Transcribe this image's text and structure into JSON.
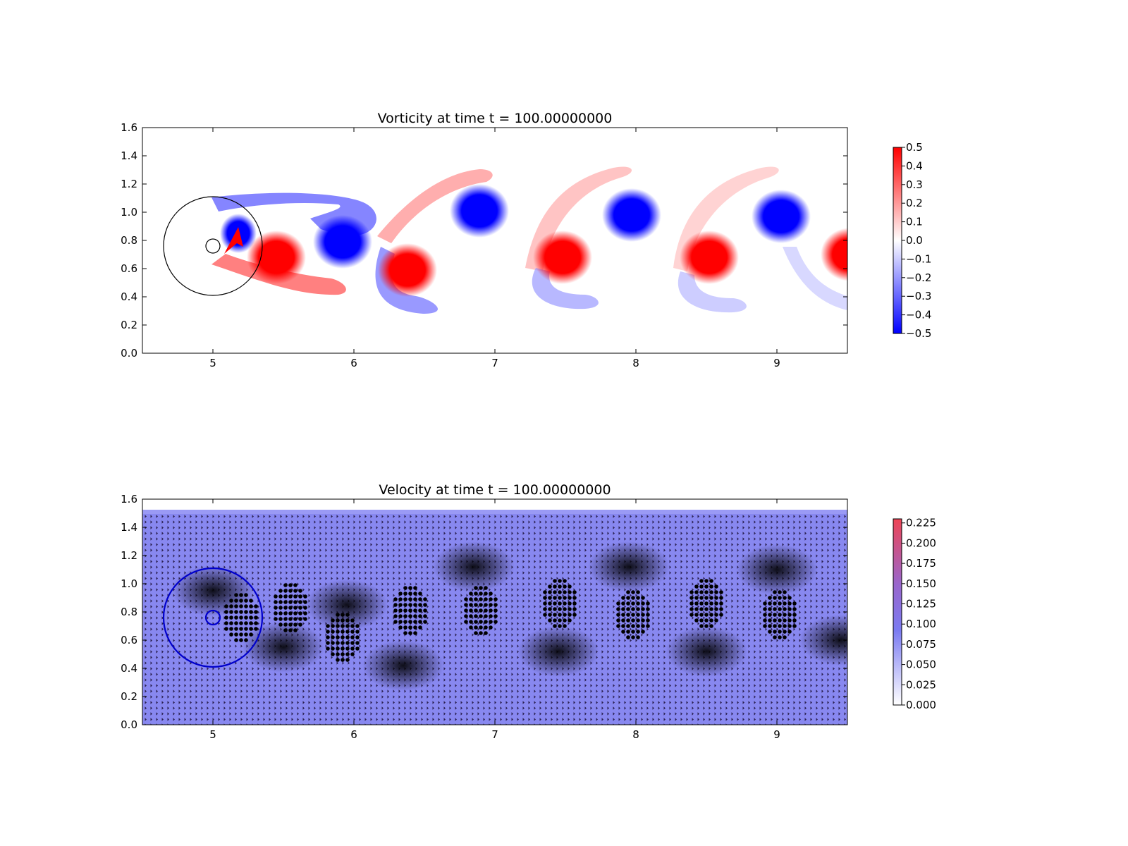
{
  "chart_data": [
    {
      "type": "heatmap",
      "title": "Vorticity at time t =   100.00000000",
      "xlim": [
        4.5,
        9.5
      ],
      "ylim": [
        0.0,
        1.6
      ],
      "xticks": [
        "5",
        "6",
        "7",
        "8",
        "9"
      ],
      "yticks": [
        "0.0",
        "0.2",
        "0.4",
        "0.6",
        "0.8",
        "1.0",
        "1.2",
        "1.4",
        "1.6"
      ],
      "colormap": "bwr",
      "colorbar": {
        "ticks": [
          "0.5",
          "0.4",
          "0.3",
          "0.2",
          "0.1",
          "0.0",
          "−0.1",
          "−0.2",
          "−0.3",
          "−0.4",
          "−0.5"
        ],
        "range": [
          -0.5,
          0.5
        ]
      },
      "body": {
        "center": [
          5.0,
          0.76
        ],
        "radius": 0.05
      },
      "domain_circle": {
        "center": [
          5.0,
          0.76
        ],
        "radius": 0.35
      },
      "vortices": [
        {
          "x": 5.18,
          "y": 0.85,
          "sign": -1
        },
        {
          "x": 5.45,
          "y": 0.68,
          "sign": 1
        },
        {
          "x": 5.92,
          "y": 0.79,
          "sign": -1
        },
        {
          "x": 6.38,
          "y": 0.59,
          "sign": 1
        },
        {
          "x": 6.89,
          "y": 1.01,
          "sign": -1
        },
        {
          "x": 7.48,
          "y": 0.68,
          "sign": 1
        },
        {
          "x": 7.97,
          "y": 0.98,
          "sign": -1
        },
        {
          "x": 8.52,
          "y": 0.68,
          "sign": 1
        },
        {
          "x": 9.03,
          "y": 0.97,
          "sign": -1
        },
        {
          "x": 9.52,
          "y": 0.7,
          "sign": 1
        }
      ]
    },
    {
      "type": "quiver",
      "title": "Velocity at time t =   100.00000000",
      "xlim": [
        4.5,
        9.5
      ],
      "ylim": [
        0.0,
        1.6
      ],
      "xticks": [
        "5",
        "6",
        "7",
        "8",
        "9"
      ],
      "yticks": [
        "0.0",
        "0.2",
        "0.4",
        "0.6",
        "0.8",
        "1.0",
        "1.2",
        "1.4",
        "1.6"
      ],
      "colorbar": {
        "ticks": [
          "0.225",
          "0.200",
          "0.175",
          "0.150",
          "0.125",
          "0.100",
          "0.075",
          "0.050",
          "0.025",
          "0.000"
        ],
        "range": [
          0.0,
          0.23
        ]
      },
      "body": {
        "center": [
          5.0,
          0.76
        ],
        "radius": 0.05
      },
      "domain_circle": {
        "center": [
          5.0,
          0.76
        ],
        "radius": 0.35
      },
      "marker_clusters": [
        {
          "x": 5.2,
          "y": 0.76
        },
        {
          "x": 5.55,
          "y": 0.83
        },
        {
          "x": 5.92,
          "y": 0.62
        },
        {
          "x": 6.4,
          "y": 0.81
        },
        {
          "x": 6.9,
          "y": 0.81
        },
        {
          "x": 7.46,
          "y": 0.86
        },
        {
          "x": 7.98,
          "y": 0.78
        },
        {
          "x": 8.5,
          "y": 0.86
        },
        {
          "x": 9.02,
          "y": 0.78
        }
      ]
    }
  ]
}
